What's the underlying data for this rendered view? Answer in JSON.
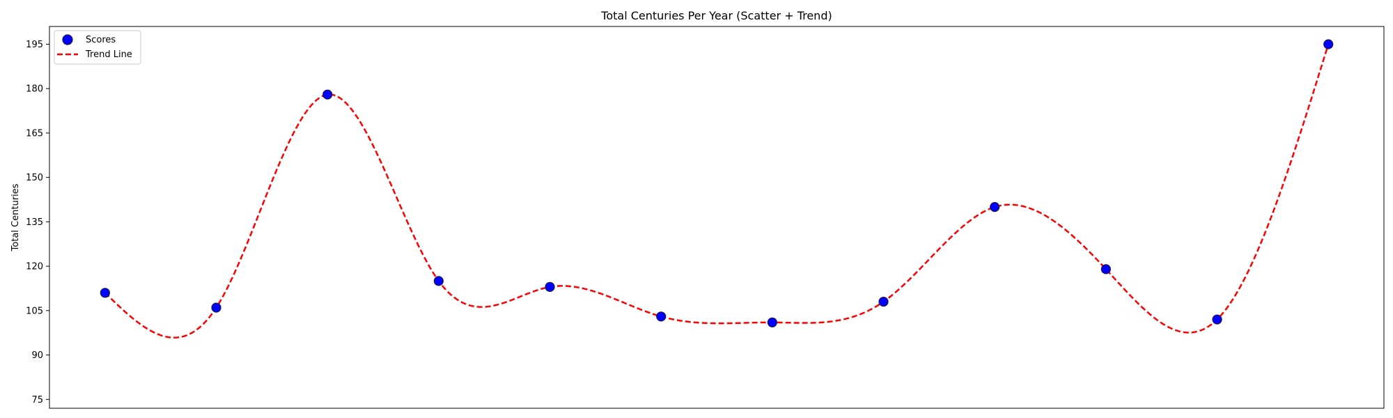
{
  "chart_data": {
    "type": "scatter",
    "title": "Total Centuries Per Year (Scatter + Trend)",
    "xlabel": "",
    "ylabel": "Total Centuries",
    "x": [
      0,
      1,
      2,
      3,
      4,
      5,
      6,
      7,
      8,
      9,
      10,
      11
    ],
    "xlim": [
      -0.5,
      11.5
    ],
    "ylim": [
      72,
      201
    ],
    "yticks": [
      75,
      90,
      105,
      120,
      135,
      150,
      165,
      180,
      195
    ],
    "series": [
      {
        "name": "Scores",
        "kind": "scatter",
        "color": "#0000ff",
        "edgecolor": "#1a1a40",
        "values": [
          111,
          106,
          178,
          115,
          113,
          103,
          101,
          108,
          140,
          119,
          102,
          195
        ]
      },
      {
        "name": "Trend Line",
        "kind": "line",
        "style": "dashed",
        "color": "#ff0000",
        "values": [
          111,
          106,
          178,
          115,
          113,
          103,
          101,
          108,
          140,
          119,
          102,
          195
        ]
      }
    ],
    "grid": false,
    "legend": "top-left"
  }
}
